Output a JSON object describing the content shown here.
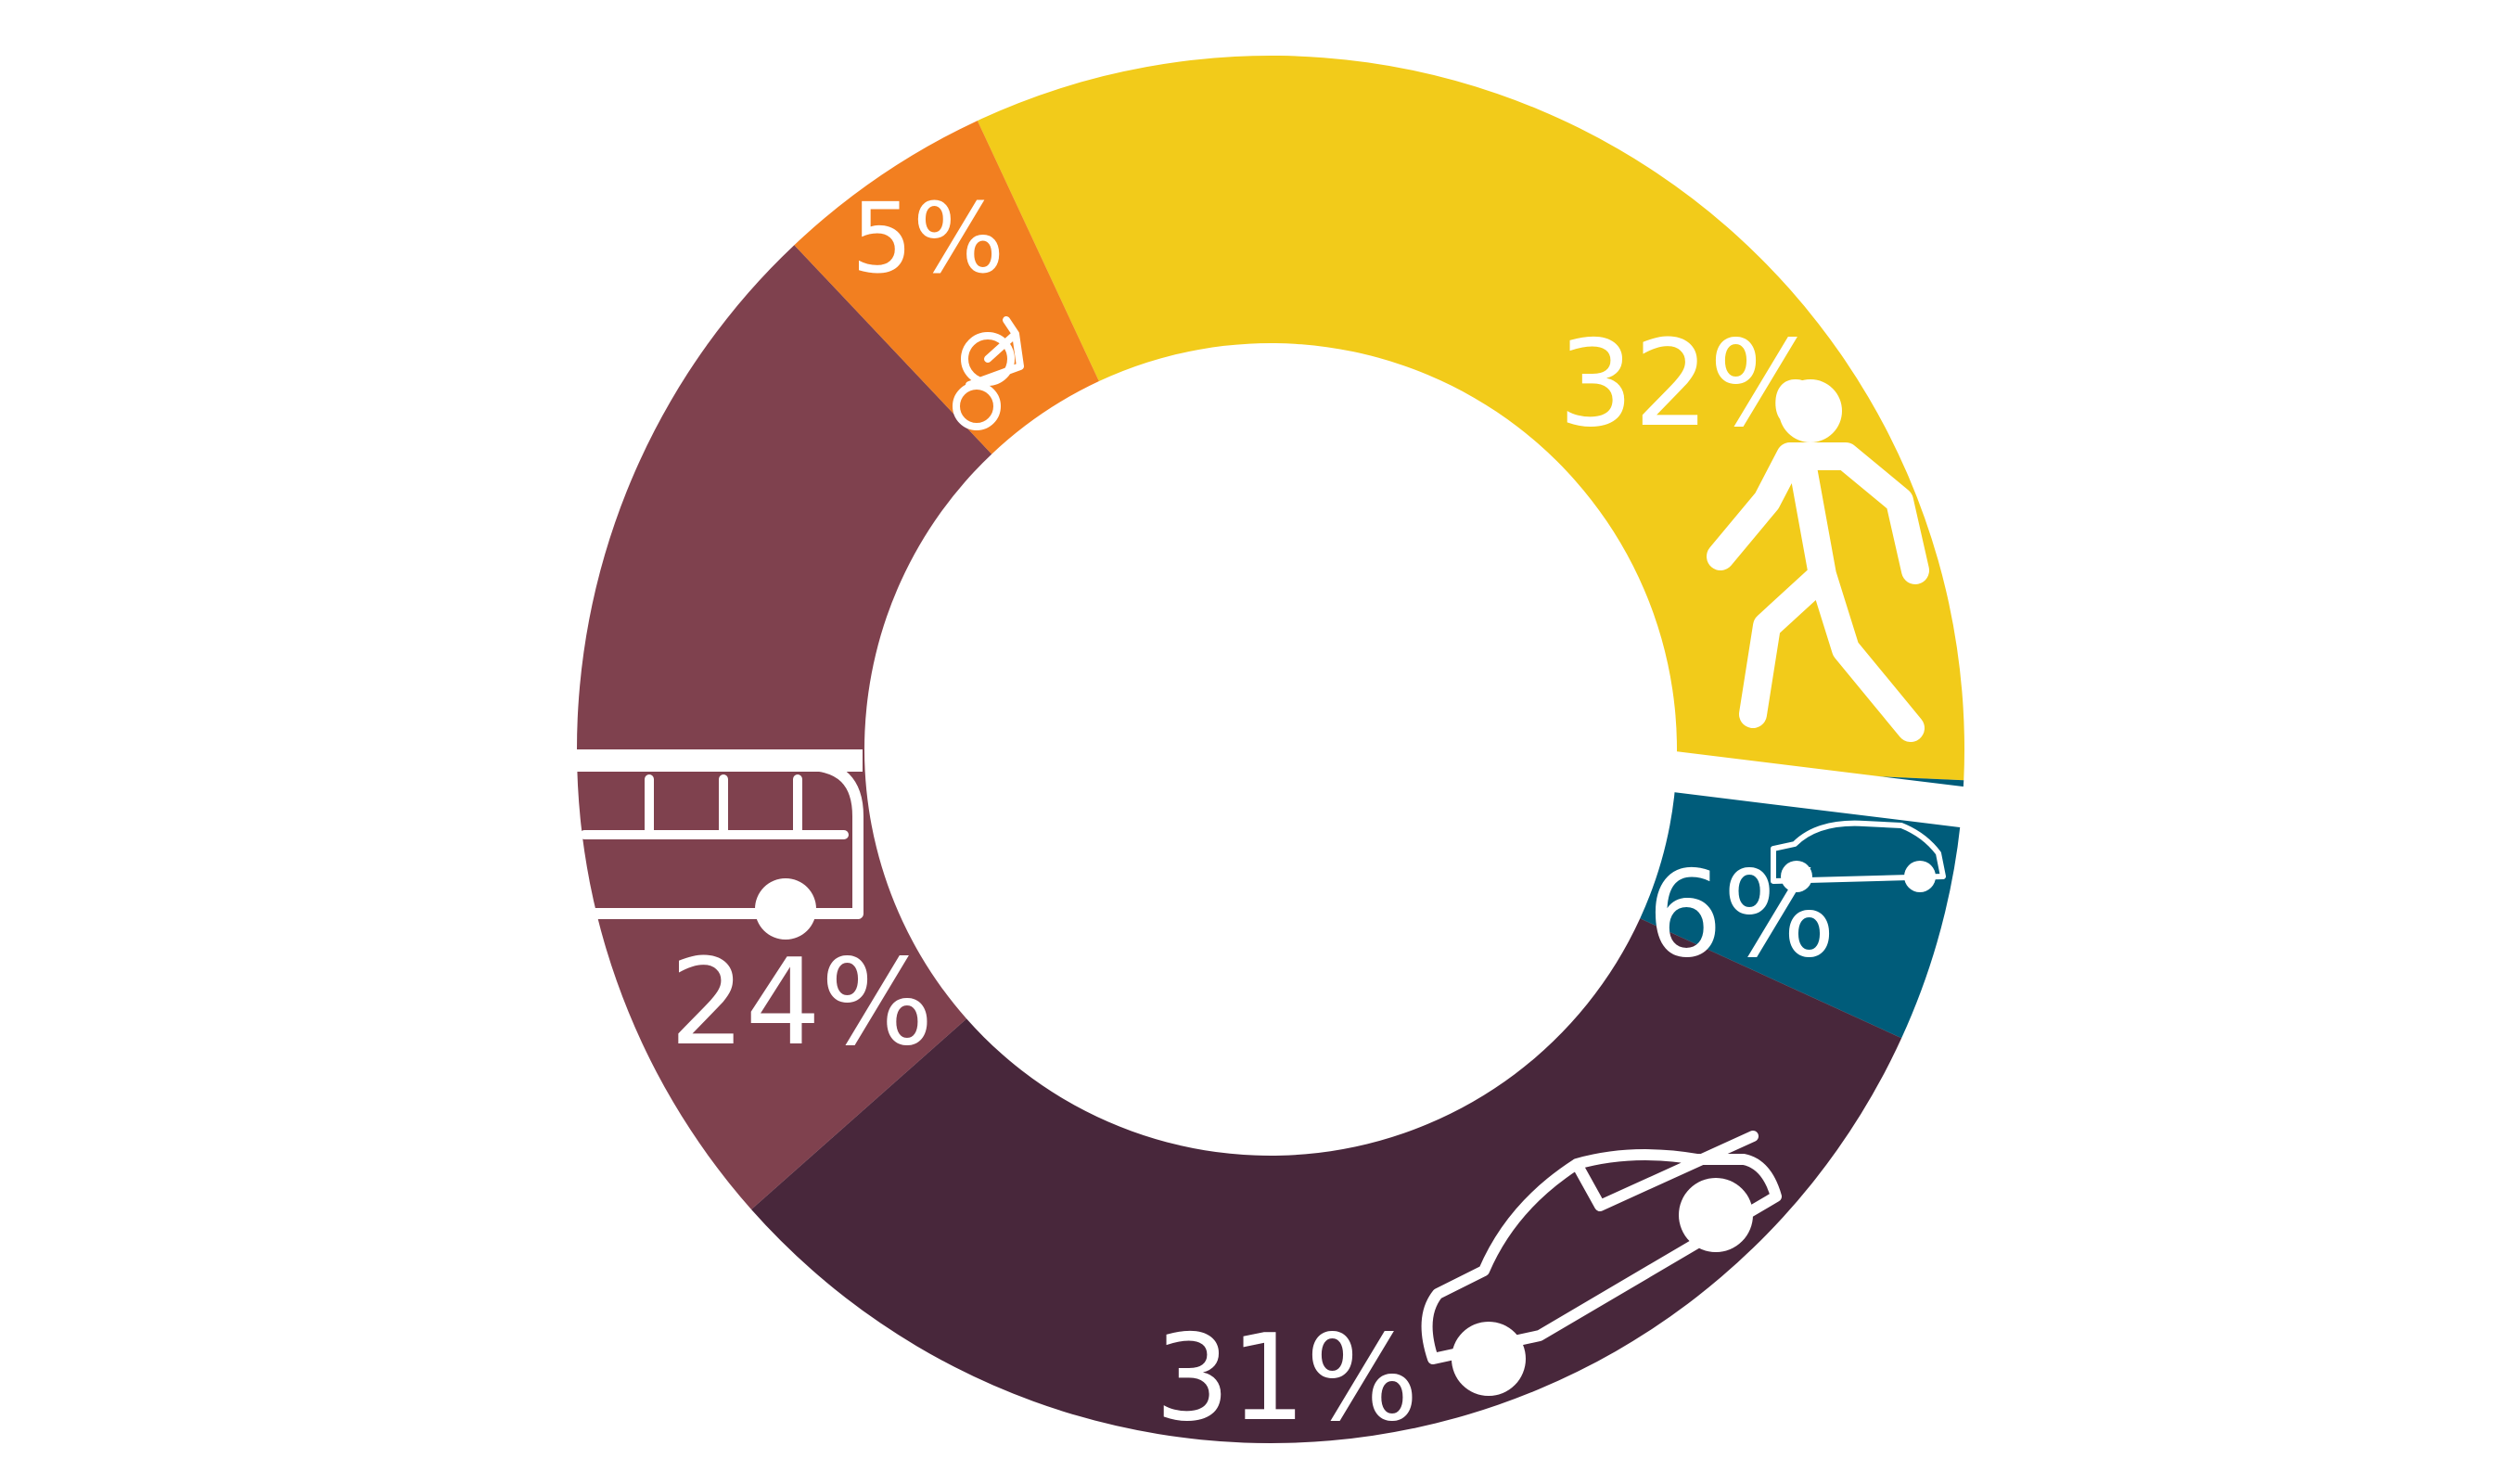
{
  "chart_data": {
    "type": "pie",
    "variant": "donut",
    "title": "",
    "legend": "none",
    "slices": [
      {
        "label": "32%",
        "value": 32,
        "color": "#f2cb1a",
        "icon": "walking-person-icon"
      },
      {
        "label": "6%",
        "value": 6,
        "color": "#005c7a",
        "icon": "small-car-icon"
      },
      {
        "label": "31%",
        "value": 31,
        "color": "#48273b",
        "icon": "car-icon"
      },
      {
        "label": "24%",
        "value": 24,
        "color": "#7f414e",
        "icon": "bus-icon"
      },
      {
        "label": "5%",
        "value": 5,
        "color": "#f27f20",
        "icon": "bicycle-icon"
      }
    ]
  }
}
